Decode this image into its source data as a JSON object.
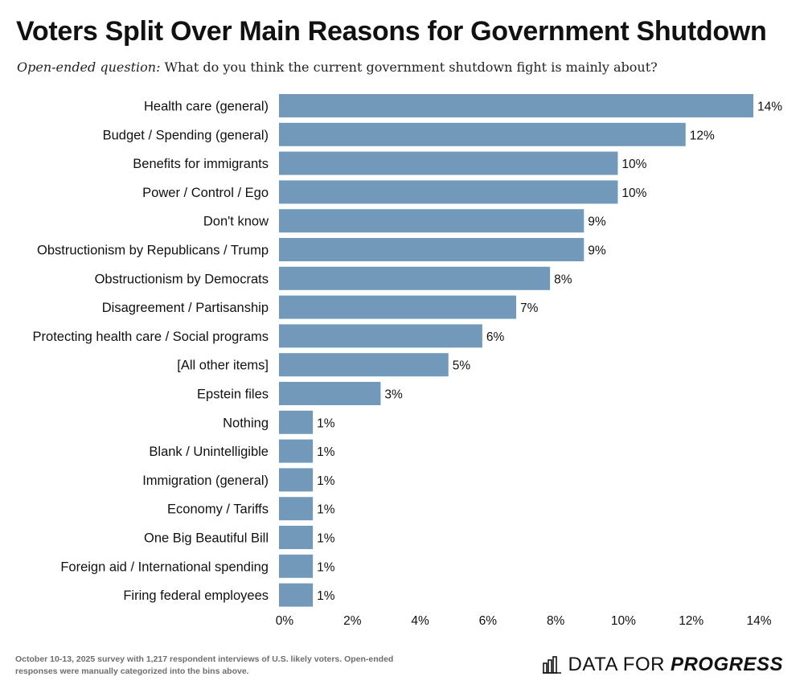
{
  "header": {
    "title": "Voters Split Over Main Reasons for Government Shutdown",
    "subtitle_prefix": "Open-ended question:",
    "subtitle_text": "What do you think the current government shutdown fight is mainly about?"
  },
  "chart_data": {
    "type": "bar",
    "orientation": "horizontal",
    "title": "Voters Split Over Main Reasons for Government Shutdown",
    "xlabel": "",
    "ylabel": "",
    "xlim": [
      0,
      14
    ],
    "x_ticks": [
      "0%",
      "2%",
      "4%",
      "6%",
      "8%",
      "10%",
      "12%",
      "14%"
    ],
    "categories": [
      "Health care (general)",
      "Budget / Spending (general)",
      "Benefits for immigrants",
      "Power / Control / Ego",
      "Don't know",
      "Obstructionism by Republicans / Trump",
      "Obstructionism by Democrats",
      "Disagreement / Partisanship",
      "Protecting health care / Social programs",
      "[All other items]",
      "Epstein files",
      "Nothing",
      "Blank / Unintelligible",
      "Immigration (general)",
      "Economy / Tariffs",
      "One Big Beautiful Bill",
      "Foreign aid / International spending",
      "Firing federal employees"
    ],
    "values": [
      14,
      12,
      10,
      10,
      9,
      9,
      8,
      7,
      6,
      5,
      3,
      1,
      1,
      1,
      1,
      1,
      1,
      1
    ],
    "value_labels": [
      "14%",
      "12%",
      "10%",
      "10%",
      "9%",
      "9%",
      "8%",
      "7%",
      "6%",
      "5%",
      "3%",
      "1%",
      "1%",
      "1%",
      "1%",
      "1%",
      "1%",
      "1%"
    ],
    "bar_color": "#7299b9",
    "grid": false
  },
  "footer": {
    "note": "October 10-13, 2025 survey with 1,217 respondent interviews of U.S. likely voters. Open-ended responses were manually categorized into the bins above.",
    "logo_light": "DATA FOR",
    "logo_bold": "PROGRESS",
    "logo_icon": "bar-chart-icon"
  }
}
